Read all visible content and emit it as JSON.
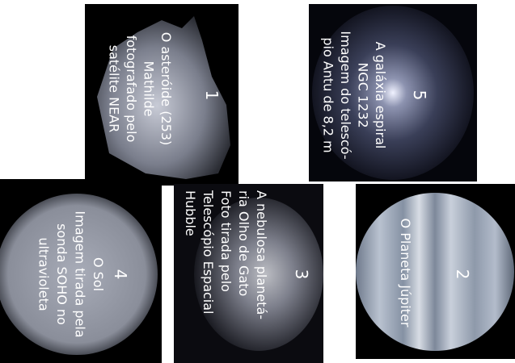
{
  "panels": [
    {
      "number": "1",
      "lines": [
        "O asteróide (253)",
        "Mathilde",
        "fotografado pelo",
        "satélite NEAR"
      ]
    },
    {
      "number": "2",
      "lines": [
        "O Planeta Júpiter"
      ]
    },
    {
      "number": "3",
      "lines": [
        "A nebulosa planetá-",
        "ria Olho de Gato",
        "Foto tirada pelo",
        "Telescópio Espacial",
        "Hubble"
      ]
    },
    {
      "number": "4",
      "lines": [
        "O Sol",
        "Imagem tirada pela",
        "sonda SOHO no",
        "ultravioleta"
      ]
    },
    {
      "number": "5",
      "lines": [
        "A galáxia espiral",
        "NGC 1232",
        "Imagem do telescó-",
        "pio Antu de 8,2 m"
      ]
    }
  ]
}
